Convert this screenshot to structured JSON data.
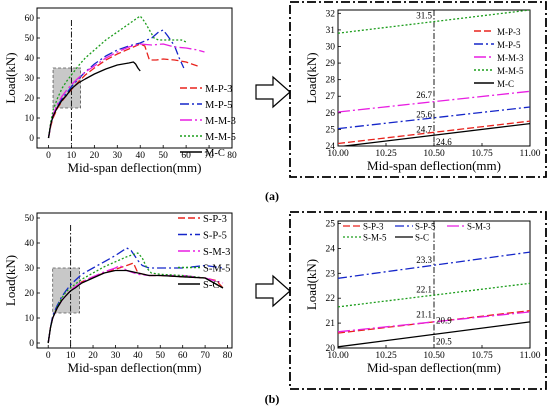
{
  "chart_data": [
    {
      "id": "a-main",
      "type": "line",
      "xlabel": "Mid-span deflection(mm)",
      "ylabel": "Load(kN)",
      "xlim": [
        -5,
        80
      ],
      "ylim": [
        -5,
        65
      ],
      "xticks": [
        0,
        10,
        20,
        30,
        40,
        50,
        60,
        70,
        80
      ],
      "yticks": [
        0,
        10,
        20,
        30,
        40,
        50,
        60
      ],
      "legend_position": "right",
      "vline_x": 10,
      "series": [
        {
          "name": "M-P-3",
          "color": "#e8231d",
          "dash": "7,3",
          "x": [
            0,
            1,
            2,
            4,
            6,
            8,
            10,
            13,
            16,
            20,
            25,
            30,
            35,
            40,
            42,
            44,
            47,
            50,
            55,
            60,
            65
          ],
          "y": [
            0,
            6,
            10,
            15,
            18.5,
            21.5,
            24.2,
            28,
            31.5,
            35,
            39,
            42,
            44.5,
            47,
            46,
            39,
            39,
            39.5,
            39,
            38,
            36
          ]
        },
        {
          "name": "M-P-5",
          "color": "#1526c9",
          "dash": "9,3,2,3",
          "x": [
            0,
            1,
            2,
            4,
            6,
            8,
            10,
            13,
            16,
            20,
            25,
            30,
            35,
            40,
            45,
            48,
            50,
            52,
            55,
            57,
            59
          ],
          "y": [
            0,
            7,
            11,
            16,
            20,
            22.5,
            25.6,
            29.5,
            33,
            37,
            41,
            44,
            46,
            47.5,
            50,
            53,
            54,
            51,
            46,
            40,
            35
          ]
        },
        {
          "name": "M-M-3",
          "color": "#e81fe2",
          "dash": "12,3,2,3",
          "x": [
            0,
            1,
            2,
            4,
            6,
            8,
            10,
            13,
            16,
            20,
            25,
            30,
            35,
            40,
            45,
            50,
            55,
            60,
            65,
            68
          ],
          "y": [
            0,
            7,
            12,
            17,
            21,
            24,
            26.7,
            30,
            33,
            36,
            40,
            43,
            45.5,
            47,
            46.5,
            47,
            45.5,
            45,
            44,
            43
          ]
        },
        {
          "name": "M-M-5",
          "color": "#1c9d1c",
          "dash": "2,2",
          "x": [
            0,
            1,
            2,
            4,
            6,
            8,
            10,
            13,
            16,
            20,
            25,
            30,
            35,
            40,
            42,
            44,
            46,
            48,
            50,
            55,
            58,
            60
          ],
          "y": [
            0,
            8,
            14,
            20,
            25,
            28.5,
            31.5,
            36,
            40,
            44,
            49,
            53,
            57,
            61,
            58,
            54,
            50,
            49,
            49,
            49,
            49,
            48
          ]
        },
        {
          "name": "M-C",
          "color": "#000000",
          "dash": "",
          "x": [
            0,
            1,
            2,
            4,
            6,
            8,
            10,
            13,
            16,
            20,
            25,
            30,
            35,
            37,
            38,
            39,
            40
          ],
          "y": [
            0,
            7,
            11,
            15.5,
            19,
            21.5,
            24.6,
            27.5,
            29.5,
            32,
            34.5,
            36.5,
            37.5,
            38,
            37,
            35,
            33.5
          ]
        }
      ]
    },
    {
      "id": "a-zoom",
      "type": "line",
      "xlabel": "Mid-span deflection(mm)",
      "ylabel": "Load(kN)",
      "xlim": [
        10,
        11
      ],
      "ylim": [
        24,
        32.2
      ],
      "xtick_labels": [
        "10.00",
        "10.25",
        "10.50",
        "10.75",
        "11.00"
      ],
      "xticks": [
        10,
        10.25,
        10.5,
        10.75,
        11
      ],
      "yticks": [
        24,
        25,
        26,
        27,
        28,
        29,
        30,
        31,
        32
      ],
      "legend_position": "top-right",
      "vline_x": 10.5,
      "annotations": [
        {
          "text": "31.5",
          "x": 10.5,
          "y": 31.5
        },
        {
          "text": "26.7",
          "x": 10.5,
          "y": 26.7
        },
        {
          "text": "25.6",
          "x": 10.5,
          "y": 25.6
        },
        {
          "text": "24.7",
          "x": 10.5,
          "y": 24.7
        },
        {
          "text": "24.6",
          "x": 10.5,
          "y": 24.6
        }
      ],
      "series": [
        {
          "name": "M-P-3",
          "color": "#e8231d",
          "dash": "7,3",
          "x": [
            10,
            11
          ],
          "y": [
            24.15,
            25.5
          ]
        },
        {
          "name": "M-P-5",
          "color": "#1526c9",
          "dash": "9,3,2,3",
          "x": [
            10,
            11
          ],
          "y": [
            25.05,
            26.35
          ]
        },
        {
          "name": "M-M-3",
          "color": "#e81fe2",
          "dash": "12,3,2,3",
          "x": [
            10,
            11
          ],
          "y": [
            26.05,
            27.3
          ]
        },
        {
          "name": "M-M-5",
          "color": "#1c9d1c",
          "dash": "2,2",
          "x": [
            10,
            11
          ],
          "y": [
            30.8,
            32.2
          ]
        },
        {
          "name": "M-C",
          "color": "#000000",
          "dash": "",
          "x": [
            10,
            11
          ],
          "y": [
            23.95,
            25.35
          ]
        }
      ]
    },
    {
      "id": "b-main",
      "type": "line",
      "xlabel": "Mid-span deflection(mm)",
      "ylabel": "Load(kN)",
      "xlim": [
        -5,
        82
      ],
      "ylim": [
        -2,
        52
      ],
      "xticks": [
        0,
        10,
        20,
        30,
        40,
        50,
        60,
        70,
        80
      ],
      "yticks": [
        0,
        10,
        20,
        30,
        40,
        50
      ],
      "legend_position": "top-right",
      "vline_x": 10,
      "series": [
        {
          "name": "S-P-3",
          "color": "#e8231d",
          "dash": "7,3",
          "x": [
            0,
            1,
            2,
            4,
            6,
            8,
            10,
            12,
            15,
            20,
            25,
            30,
            35,
            38,
            40,
            45,
            50,
            60,
            70,
            75,
            78
          ],
          "y": [
            0,
            6,
            10,
            14,
            17,
            19,
            21,
            22.5,
            24.5,
            26.5,
            28,
            29.5,
            31,
            32,
            28,
            27,
            27,
            26.5,
            26,
            25,
            22
          ]
        },
        {
          "name": "S-P-5",
          "color": "#1526c9",
          "dash": "9,3,2,3",
          "x": [
            0,
            1,
            2,
            4,
            6,
            8,
            10,
            12,
            15,
            20,
            25,
            30,
            35,
            37,
            40,
            42,
            45,
            50,
            60,
            70,
            78
          ],
          "y": [
            0,
            6,
            11,
            15,
            18.5,
            21,
            23.3,
            25,
            27.5,
            30,
            32.5,
            35,
            38,
            37,
            33,
            31,
            30,
            30,
            30,
            31,
            30
          ]
        },
        {
          "name": "S-M-3",
          "color": "#e81fe2",
          "dash": "12,3,2,3",
          "x": [
            0,
            1,
            2,
            4,
            6,
            8,
            10,
            12,
            15,
            20,
            25,
            30,
            32,
            35,
            40,
            45,
            50,
            60,
            70,
            78
          ],
          "y": [
            0,
            6,
            10,
            14,
            17,
            19,
            21.1,
            22.5,
            24.5,
            26.5,
            28.5,
            30,
            31,
            29,
            27.5,
            27,
            27,
            27,
            26,
            24
          ]
        },
        {
          "name": "S-M-5",
          "color": "#1c9d1c",
          "dash": "2,2",
          "x": [
            0,
            1,
            2,
            4,
            6,
            8,
            10,
            12,
            15,
            20,
            25,
            30,
            35,
            40,
            42,
            44,
            46,
            50,
            60,
            70,
            78
          ],
          "y": [
            0,
            6,
            10,
            14.5,
            18,
            20.5,
            22.1,
            23.5,
            25.5,
            28,
            30.5,
            32.5,
            34.5,
            36,
            34,
            30,
            28,
            27.5,
            27,
            26,
            22
          ]
        },
        {
          "name": "S-C",
          "color": "#000000",
          "dash": "",
          "x": [
            0,
            1,
            2,
            4,
            6,
            8,
            10,
            12,
            15,
            20,
            25,
            30,
            35,
            40,
            45,
            50,
            60,
            70,
            78
          ],
          "y": [
            0,
            6,
            10,
            14,
            17,
            19,
            20.9,
            22,
            24,
            26,
            28,
            29,
            29,
            28,
            27,
            27,
            26.5,
            26,
            22
          ]
        }
      ]
    },
    {
      "id": "b-zoom",
      "type": "line",
      "xlabel": "Mid-span deflection(mm)",
      "ylabel": "Load(kN)",
      "xlim": [
        10,
        11
      ],
      "ylim": [
        20,
        25.1
      ],
      "xtick_labels": [
        "10.00",
        "10.25",
        "10.50",
        "10.75",
        "11.00"
      ],
      "xticks": [
        10,
        10.25,
        10.5,
        10.75,
        11
      ],
      "yticks": [
        20,
        21,
        22,
        23,
        24,
        25
      ],
      "legend_position": "top",
      "vline_x": 10.5,
      "annotations": [
        {
          "text": "23.3",
          "x": 10.5,
          "y": 23.3
        },
        {
          "text": "22.1",
          "x": 10.5,
          "y": 22.1
        },
        {
          "text": "21.1",
          "x": 10.5,
          "y": 21.1
        },
        {
          "text": "20.9",
          "x": 10.5,
          "y": 20.9
        },
        {
          "text": "20.5",
          "x": 10.5,
          "y": 20.5
        }
      ],
      "series": [
        {
          "name": "S-P-3",
          "color": "#e8231d",
          "dash": "7,3",
          "x": [
            10,
            11
          ],
          "y": [
            20.6,
            21.5
          ]
        },
        {
          "name": "S-P-5",
          "color": "#1526c9",
          "dash": "9,3,2,3",
          "x": [
            10,
            11
          ],
          "y": [
            22.8,
            23.85
          ]
        },
        {
          "name": "S-M-3",
          "color": "#e81fe2",
          "dash": "12,3,2,3",
          "x": [
            10,
            11
          ],
          "y": [
            20.65,
            21.45
          ]
        },
        {
          "name": "S-M-5",
          "color": "#1c9d1c",
          "dash": "2,2",
          "x": [
            10,
            11
          ],
          "y": [
            21.65,
            22.6
          ]
        },
        {
          "name": "S-C",
          "color": "#000000",
          "dash": "",
          "x": [
            10,
            11
          ],
          "y": [
            20.05,
            21.05
          ]
        }
      ]
    }
  ],
  "panels": {
    "a": "(a)",
    "b": "(b)"
  }
}
